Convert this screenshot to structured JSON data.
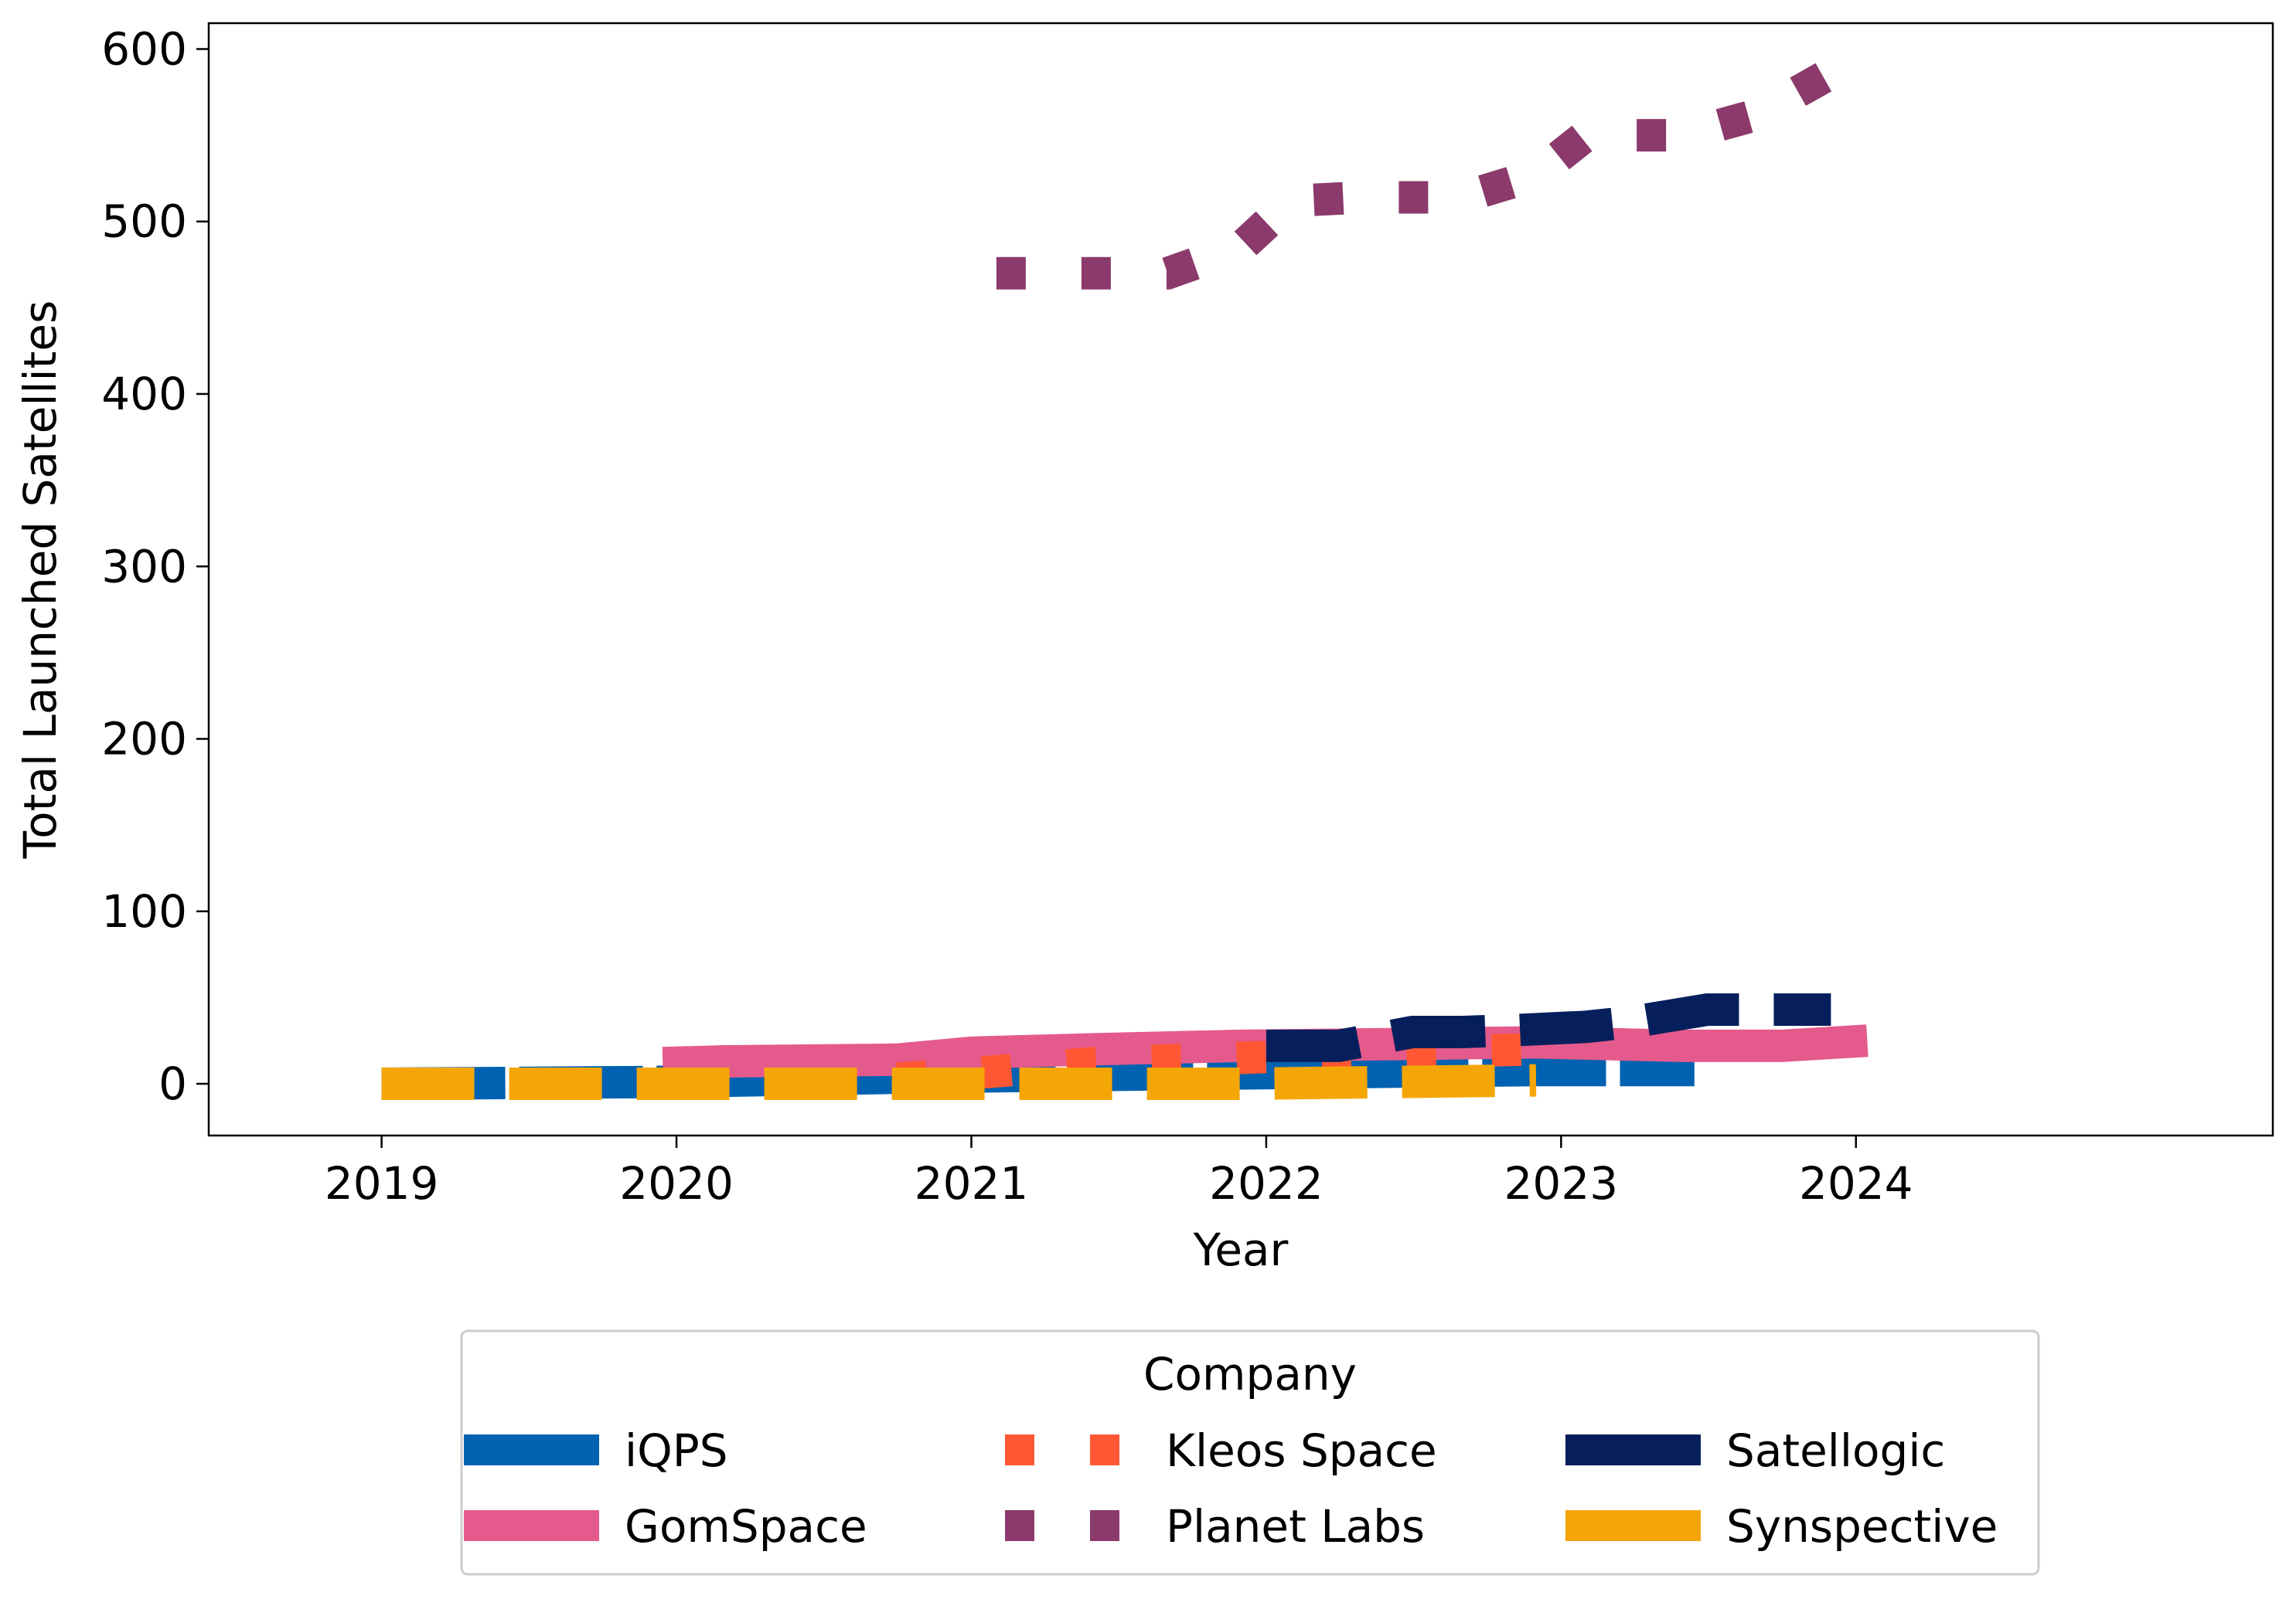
{
  "chart_data": {
    "type": "line",
    "title": "",
    "xlabel": "Year",
    "ylabel": "Total Launched Satellites",
    "xlim": [
      "2018-06-01",
      "2025-06-01"
    ],
    "ylim": [
      -30,
      615
    ],
    "x_ticks": [
      "2019",
      "2020",
      "2021",
      "2022",
      "2023",
      "2024"
    ],
    "y_ticks": [
      0,
      100,
      200,
      300,
      400,
      500,
      600
    ],
    "grid": false,
    "legend": {
      "title": "Company",
      "placement": "bottom-center",
      "columns": 3
    },
    "series": [
      {
        "name": "iQPS",
        "color": "#0062b0",
        "dash": "solid-long",
        "points": [
          [
            "2019-01-01",
            0
          ],
          [
            "2019-12-01",
            1
          ],
          [
            "2020-12-01",
            4
          ],
          [
            "2021-12-01",
            6
          ],
          [
            "2022-12-01",
            8
          ],
          [
            "2023-06-15",
            8
          ]
        ]
      },
      {
        "name": "GomSpace",
        "color": "#e55a8c",
        "dash": "solid",
        "points": [
          [
            "2019-12-15",
            12
          ],
          [
            "2020-03-01",
            13
          ],
          [
            "2020-10-01",
            14
          ],
          [
            "2021-01-01",
            18
          ],
          [
            "2021-06-01",
            20
          ],
          [
            "2021-12-01",
            22
          ],
          [
            "2022-06-01",
            23
          ],
          [
            "2022-12-01",
            24
          ],
          [
            "2023-06-01",
            22
          ],
          [
            "2023-10-01",
            22
          ],
          [
            "2024-01-15",
            25
          ]
        ]
      },
      {
        "name": "Kleos Space",
        "color": "#ff5733",
        "dash": "dotted",
        "points": [
          [
            "2020-10-01",
            3
          ],
          [
            "2021-01-01",
            6
          ],
          [
            "2021-06-01",
            12
          ],
          [
            "2021-12-01",
            15
          ],
          [
            "2022-06-01",
            18
          ],
          [
            "2022-12-01",
            20
          ]
        ]
      },
      {
        "name": "Planet Labs",
        "color": "#8b3a6b",
        "dash": "dotted",
        "points": [
          [
            "2021-02-01",
            470
          ],
          [
            "2021-05-01",
            470
          ],
          [
            "2021-09-01",
            470
          ],
          [
            "2021-12-01",
            485
          ],
          [
            "2022-02-01",
            512
          ],
          [
            "2022-05-01",
            514
          ],
          [
            "2022-09-01",
            514
          ],
          [
            "2022-12-01",
            527
          ],
          [
            "2023-02-01",
            550
          ],
          [
            "2023-06-01",
            550
          ],
          [
            "2023-09-01",
            562
          ],
          [
            "2023-12-01",
            586
          ]
        ]
      },
      {
        "name": "Satellogic",
        "color": "#061f5c",
        "dash": "dashed",
        "points": [
          [
            "2022-01-01",
            22
          ],
          [
            "2022-04-01",
            22
          ],
          [
            "2022-07-01",
            30
          ],
          [
            "2022-09-01",
            30
          ],
          [
            "2022-11-01",
            31
          ],
          [
            "2023-02-01",
            33
          ],
          [
            "2023-04-01",
            36
          ],
          [
            "2023-07-01",
            43
          ],
          [
            "2023-09-01",
            43
          ],
          [
            "2023-12-01",
            43
          ]
        ]
      },
      {
        "name": "Synspective",
        "color": "#f5a607",
        "dash": "dashed",
        "points": [
          [
            "2019-01-01",
            0
          ],
          [
            "2019-06-01",
            0
          ],
          [
            "2019-12-01",
            0
          ],
          [
            "2020-06-01",
            0
          ],
          [
            "2020-12-01",
            0
          ],
          [
            "2021-06-01",
            0
          ],
          [
            "2021-12-01",
            0
          ],
          [
            "2022-06-01",
            1
          ],
          [
            "2022-12-01",
            2
          ]
        ]
      }
    ]
  }
}
